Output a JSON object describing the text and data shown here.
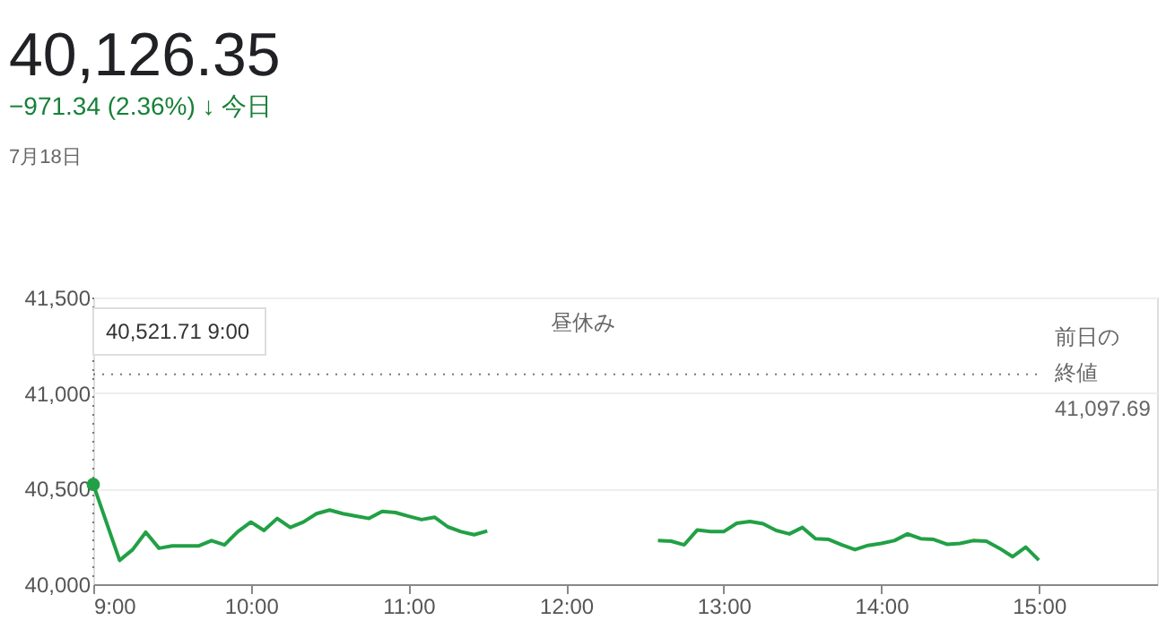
{
  "chart_data": {
    "type": "line",
    "title": "40,126.35",
    "subtitle": "−971.34 (2.36%) ↓ 今日",
    "annotations": [
      "7月18日",
      "昼休み",
      "40,521.71 9:00"
    ],
    "series": [
      {
        "color": "#22a045",
        "x": [
          9,
          9.167,
          9.25,
          9.333,
          9.417,
          9.5,
          9.583,
          9.667,
          9.75,
          9.833,
          9.917,
          10,
          10.083,
          10.167,
          10.25,
          10.333,
          10.417,
          10.5,
          10.583,
          10.667,
          10.75,
          10.833,
          10.917,
          11,
          11.083,
          11.167,
          11.25,
          11.333,
          11.417,
          11.5,
          12,
          12.583,
          12.667,
          12.75,
          12.833,
          12.917,
          13,
          13.083,
          13.167,
          13.25,
          13.333,
          13.417,
          13.5,
          13.583,
          13.667,
          13.75,
          13.833,
          13.917,
          14,
          14.083,
          14.167,
          14.25,
          14.333,
          14.417,
          14.5,
          14.583,
          14.667,
          14.75,
          14.833,
          14.917,
          15
        ],
        "values": [
          40521.71,
          40125,
          40181,
          40272,
          40188,
          40200,
          40200,
          40200,
          40228,
          40206,
          40275,
          40325,
          40281,
          40344,
          40297,
          40325,
          40369,
          40388,
          40369,
          40356,
          40344,
          40381,
          40375,
          40356,
          40338,
          40350,
          40300,
          40275,
          40259,
          40278,
          null,
          40228,
          40225,
          40206,
          40284,
          40275,
          40275,
          40319,
          40328,
          40316,
          40281,
          40263,
          40297,
          40238,
          40234,
          40206,
          40181,
          40203,
          40213,
          40228,
          40263,
          40238,
          40234,
          40209,
          40213,
          40228,
          40225,
          40188,
          40144,
          40194,
          40126
        ]
      }
    ],
    "xlim": [
      9,
      15.75
    ],
    "ylim": [
      40000,
      41500
    ],
    "xticks": [
      {
        "value": 9,
        "label": "9:00"
      },
      {
        "value": 10,
        "label": "10:00"
      },
      {
        "value": 11,
        "label": "11:00"
      },
      {
        "value": 12,
        "label": "12:00"
      },
      {
        "value": 13,
        "label": "13:00"
      },
      {
        "value": 14,
        "label": "14:00"
      },
      {
        "value": 15,
        "label": "15:00"
      }
    ],
    "yticks": [
      {
        "value": 40000,
        "label": "40,000"
      },
      {
        "value": 40500,
        "label": "40,500"
      },
      {
        "value": 41000,
        "label": "41,000"
      },
      {
        "value": 41500,
        "label": "41,500"
      }
    ],
    "ref_lines": [
      {
        "axis": "y",
        "value": 41097.69,
        "label": "前日の終値 41,097.69",
        "line_style": "dotted",
        "color": "#777777"
      },
      {
        "axis": "x",
        "value": 9,
        "line_style": "dotted",
        "color": "#777777"
      }
    ],
    "grid": "y",
    "marker": "none",
    "line_style": "solid"
  }
}
